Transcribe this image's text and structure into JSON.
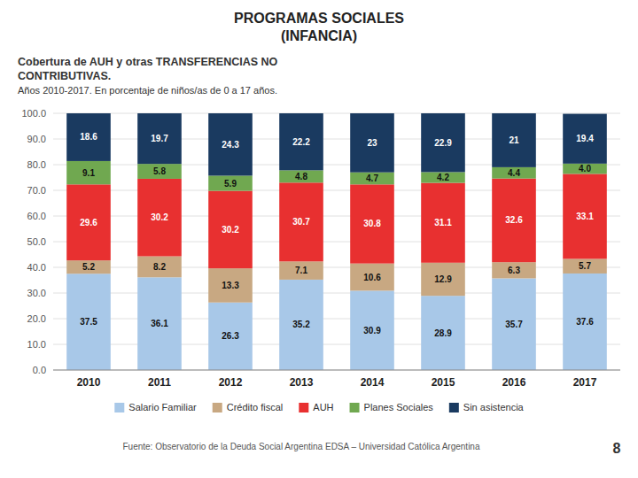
{
  "chart_data": {
    "type": "bar",
    "stacked": true,
    "title": [
      "PROGRAMAS SOCIALES",
      "(INFANCIA)"
    ],
    "subtitle": [
      "Cobertura de AUH y otras  TRANSFERENCIAS NO",
      "CONTRIBUTIVAS.",
      "Años 2010-2017. En porcentaje de niños/as de 0 a 17 años."
    ],
    "annotations": [
      "Fuente:  Observatorio de  la Deuda Social Argentina  EDSA  – Universidad Católica Argentina",
      "8"
    ],
    "categories": [
      "2010",
      "2011",
      "2012",
      "2013",
      "2014",
      "2015",
      "2016",
      "2017"
    ],
    "series": [
      {
        "name": "Salario Familiar",
        "color": "#A8C8E8",
        "values": [
          37.5,
          36.1,
          26.3,
          35.2,
          30.9,
          28.9,
          35.7,
          37.6
        ]
      },
      {
        "name": "Crédito fiscal",
        "color": "#C8A882",
        "values": [
          5.2,
          8.2,
          13.3,
          7.1,
          10.6,
          12.9,
          6.3,
          5.7
        ]
      },
      {
        "name": "AUH",
        "color": "#E83030",
        "values": [
          29.6,
          30.2,
          30.2,
          30.7,
          30.8,
          31.1,
          32.6,
          33.1
        ]
      },
      {
        "name": "Planes Sociales",
        "color": "#70A850",
        "values": [
          9.1,
          5.8,
          5.9,
          4.8,
          4.7,
          4.2,
          4.4,
          4.0
        ],
        "value_labels": [
          "9.1",
          "5.8",
          "5.9",
          "4.8",
          "4.7",
          "4.2",
          "4.4",
          "4.0"
        ]
      },
      {
        "name": "Sin asistencia",
        "color": "#1A3A60",
        "values": [
          18.6,
          19.7,
          24.3,
          22.2,
          23.0,
          22.9,
          21.0,
          19.4
        ]
      }
    ],
    "ylim": [
      0,
      100
    ],
    "yticks": [
      {
        "value": 0,
        "label": "0.0"
      },
      {
        "value": 10,
        "label": "10.0"
      },
      {
        "value": 20,
        "label": "20.0"
      },
      {
        "value": 30,
        "label": "30.0"
      },
      {
        "value": 40,
        "label": "40.0"
      },
      {
        "value": 50,
        "label": "50.0"
      },
      {
        "value": 60,
        "label": "60.0"
      },
      {
        "value": 70,
        "label": "70.0"
      },
      {
        "value": 80,
        "label": "80.0"
      },
      {
        "value": 90,
        "label": "90.0"
      },
      {
        "value": 100,
        "label": "100.0"
      }
    ],
    "grid": true,
    "legend": "bottom",
    "data_labels": true
  }
}
